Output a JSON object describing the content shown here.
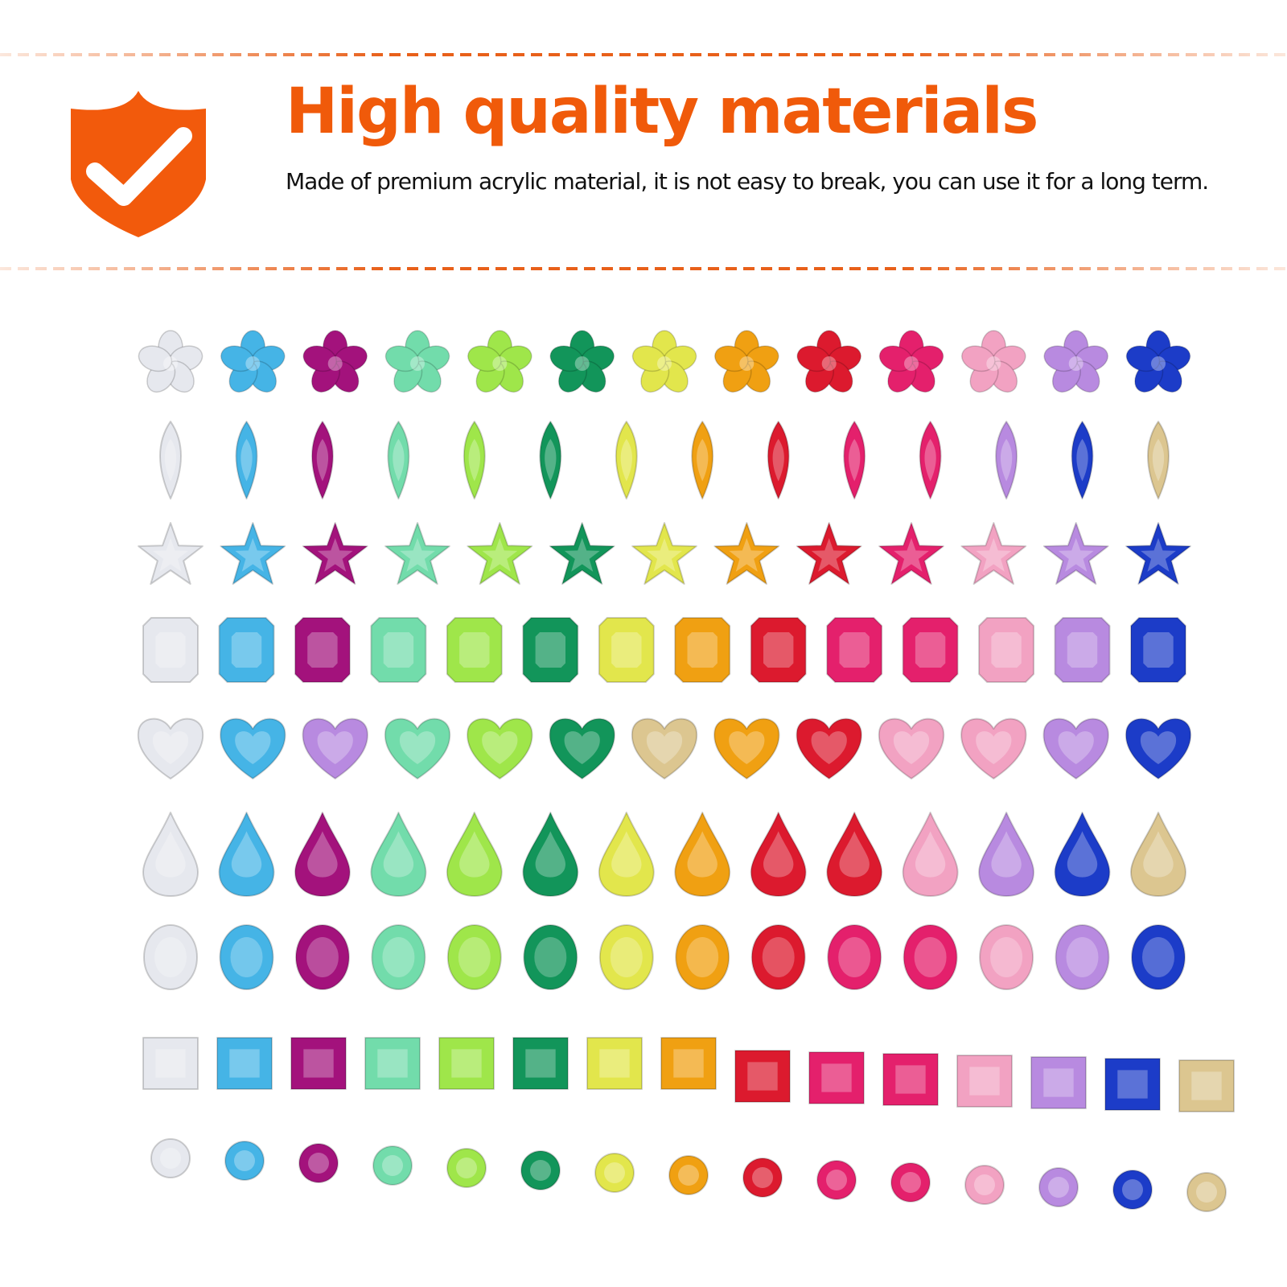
{
  "header": {
    "title": "High quality materials",
    "description": " Made of premium acrylic material, it is not easy to break, you can use it for a long term.",
    "accent_color": "#f05a0a",
    "icon": "shield-check-icon"
  },
  "gem_palette": {
    "clear": "#e6e8ee",
    "light_blue": "#45b4e6",
    "magenta": "#a3127c",
    "mint": "#72dcab",
    "lime": "#9fe64a",
    "emerald": "#12955a",
    "yellow": "#e2e64c",
    "amber": "#f0a012",
    "red": "#dc1a2e",
    "rose": "#e4206c",
    "pink": "#f2a2c2",
    "lavender": "#b88ae0",
    "blue": "#1c3cc8",
    "champagne": "#dcc690"
  },
  "gem_rows": [
    {
      "shape": "flower",
      "colors": [
        "clear",
        "light_blue",
        "magenta",
        "mint",
        "lime",
        "emerald",
        "yellow",
        "amber",
        "red",
        "rose",
        "pink",
        "lavender",
        "blue"
      ]
    },
    {
      "shape": "marquise",
      "colors": [
        "clear",
        "light_blue",
        "magenta",
        "mint",
        "lime",
        "emerald",
        "yellow",
        "amber",
        "red",
        "rose",
        "rose",
        "lavender",
        "blue",
        "champagne"
      ]
    },
    {
      "shape": "star",
      "colors": [
        "clear",
        "light_blue",
        "magenta",
        "mint",
        "lime",
        "emerald",
        "yellow",
        "amber",
        "red",
        "rose",
        "pink",
        "lavender",
        "blue"
      ]
    },
    {
      "shape": "octagon",
      "colors": [
        "clear",
        "light_blue",
        "magenta",
        "mint",
        "lime",
        "emerald",
        "yellow",
        "amber",
        "red",
        "rose",
        "rose",
        "pink",
        "lavender",
        "blue"
      ]
    },
    {
      "shape": "heart",
      "colors": [
        "clear",
        "light_blue",
        "lavender",
        "mint",
        "lime",
        "emerald",
        "champagne",
        "amber",
        "red",
        "pink",
        "pink",
        "lavender",
        "blue"
      ]
    },
    {
      "shape": "teardrop",
      "colors": [
        "clear",
        "light_blue",
        "magenta",
        "mint",
        "lime",
        "emerald",
        "yellow",
        "amber",
        "red",
        "red",
        "pink",
        "lavender",
        "blue",
        "champagne"
      ]
    },
    {
      "shape": "oval",
      "colors": [
        "clear",
        "light_blue",
        "magenta",
        "mint",
        "lime",
        "emerald",
        "yellow",
        "amber",
        "red",
        "rose",
        "rose",
        "pink",
        "lavender",
        "blue"
      ]
    },
    {
      "shape": "square",
      "colors": [
        "clear",
        "light_blue",
        "magenta",
        "mint",
        "lime",
        "emerald",
        "yellow",
        "amber",
        "red",
        "rose",
        "rose",
        "pink",
        "lavender",
        "blue",
        "champagne"
      ]
    },
    {
      "shape": "round",
      "colors": [
        "clear",
        "light_blue",
        "magenta",
        "mint",
        "lime",
        "emerald",
        "yellow",
        "amber",
        "red",
        "rose",
        "rose",
        "pink",
        "lavender",
        "blue",
        "champagne"
      ]
    }
  ]
}
